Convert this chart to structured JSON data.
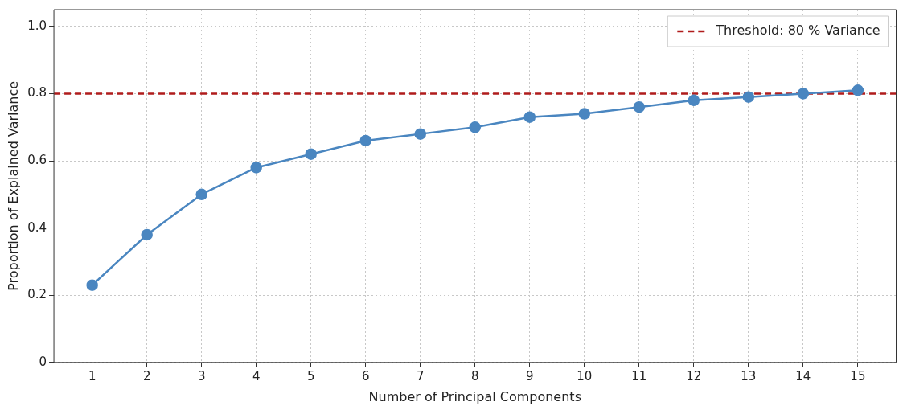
{
  "chart_data": {
    "type": "line",
    "xlabel": "Number of Principal Components",
    "ylabel": "Proportion of Explained Variance",
    "x": [
      1,
      2,
      3,
      4,
      5,
      6,
      7,
      8,
      9,
      10,
      11,
      12,
      13,
      14,
      15
    ],
    "series": [
      {
        "color": "#4a86c0",
        "values": [
          0.23,
          0.38,
          0.5,
          0.58,
          0.62,
          0.66,
          0.68,
          0.7,
          0.73,
          0.74,
          0.76,
          0.78,
          0.79,
          0.8,
          0.81
        ]
      }
    ],
    "marker": "circle",
    "line_style": "solid",
    "xlim": [
      0.3,
      15.7
    ],
    "xticks": [
      1,
      2,
      3,
      4,
      5,
      6,
      7,
      8,
      9,
      10,
      11,
      12,
      13,
      14,
      15
    ],
    "ylim": [
      0,
      1.05
    ],
    "yticks": [
      0,
      0.2,
      0.4,
      0.6,
      0.8,
      {
        "value": 1,
        "label": "1.0"
      }
    ],
    "ref_lines": [
      {
        "axis": "y",
        "value": 0.8,
        "label": "Threshold: 80 % Variance",
        "color": "#b01c1c",
        "line_style": "dashed"
      }
    ],
    "grid": true,
    "legend": "top right"
  }
}
